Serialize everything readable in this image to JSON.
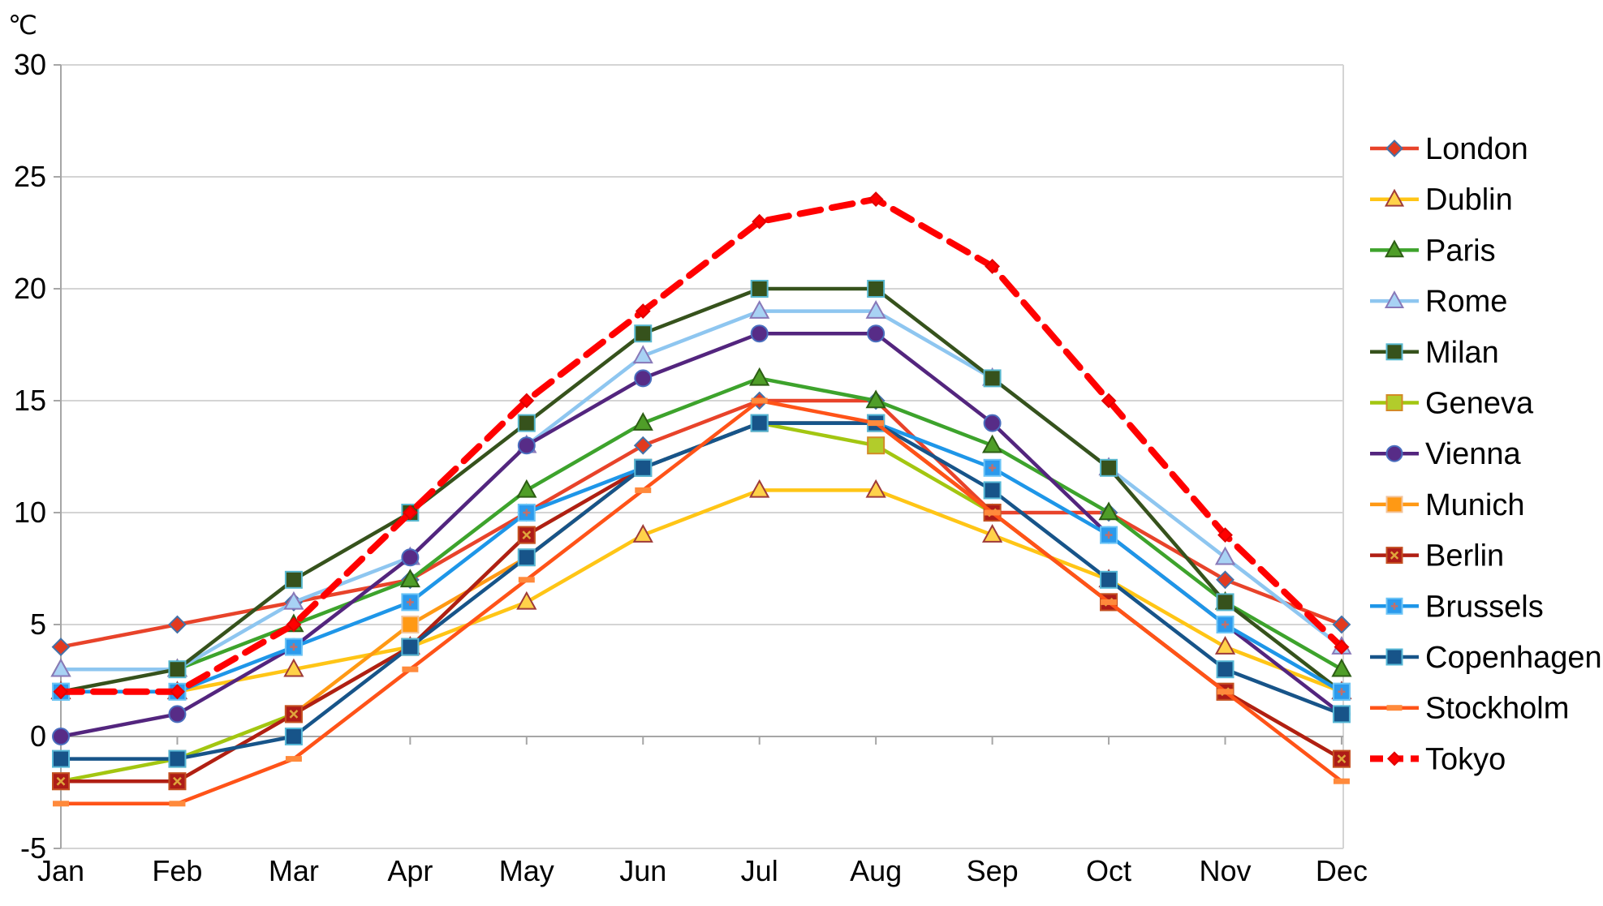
{
  "chart_data": {
    "type": "line",
    "title": "",
    "ylabel": "℃",
    "xlabel": "",
    "grid": "horizontal",
    "legend_position": "right",
    "ylim": [
      -5,
      30
    ],
    "y_ticks": [
      30,
      25,
      20,
      15,
      10,
      5,
      0,
      -5
    ],
    "categories": [
      "Jan",
      "Feb",
      "Mar",
      "Apr",
      "May",
      "Jun",
      "Jul",
      "Aug",
      "Sep",
      "Oct",
      "Nov",
      "Dec"
    ],
    "series": [
      {
        "name": "London",
        "color": "#E8432A",
        "marker": "diamond",
        "marker_fill": "#E23A1F",
        "marker_border": "#4472A8",
        "values": [
          4,
          5,
          6,
          7,
          10,
          13,
          15,
          15,
          10,
          10,
          7,
          5
        ]
      },
      {
        "name": "Dublin",
        "color": "#FFC516",
        "marker": "triangle",
        "marker_fill": "#FFD24A",
        "marker_border": "#9E3A38",
        "values": [
          2,
          2,
          3,
          4,
          6,
          9,
          11,
          11,
          9,
          7,
          4,
          2
        ]
      },
      {
        "name": "Paris",
        "color": "#3DA32C",
        "marker": "triangle",
        "marker_fill": "#4F9E28",
        "marker_border": "#2C5D14",
        "values": [
          3,
          3,
          5,
          7,
          11,
          14,
          16,
          15,
          13,
          10,
          6,
          3
        ]
      },
      {
        "name": "Rome",
        "color": "#8EC6F0",
        "marker": "triangle",
        "marker_fill": "#A8D2F4",
        "marker_border": "#8878B8",
        "values": [
          3,
          3,
          6,
          8,
          13,
          17,
          19,
          19,
          16,
          12,
          8,
          4
        ]
      },
      {
        "name": "Milan",
        "color": "#36521C",
        "marker": "square",
        "marker_fill": "#36521C",
        "marker_border": "#57B7CE",
        "values": [
          2,
          3,
          7,
          10,
          14,
          18,
          20,
          20,
          16,
          12,
          6,
          2
        ]
      },
      {
        "name": "Geneva",
        "color": "#A3C611",
        "marker": "square",
        "marker_fill": "#B2CC2B",
        "marker_border": "#D38A26",
        "values": [
          -2,
          -1,
          1,
          4,
          9,
          12,
          14,
          13,
          10,
          6,
          2,
          -1
        ]
      },
      {
        "name": "Vienna",
        "color": "#53257E",
        "marker": "circle",
        "marker_fill": "#572C87",
        "marker_border": "#4A6FBF",
        "values": [
          0,
          1,
          4,
          8,
          13,
          16,
          18,
          18,
          14,
          9,
          5,
          1
        ]
      },
      {
        "name": "Munich",
        "color": "#FF9914",
        "marker": "square",
        "marker_fill": "#FF9914",
        "marker_border": "#F2C49B",
        "values": [
          -2,
          -2,
          1,
          5,
          8,
          12,
          14,
          14,
          10,
          6,
          2,
          -1
        ]
      },
      {
        "name": "Berlin",
        "color": "#B01F14",
        "marker": "square-x",
        "marker_fill": "#AE1C17",
        "marker_border": "#C34F22",
        "marker_accent": "#DFA53C",
        "values": [
          -2,
          -2,
          1,
          4,
          9,
          12,
          14,
          14,
          10,
          6,
          2,
          -1
        ]
      },
      {
        "name": "Brussels",
        "color": "#1E96E8",
        "marker": "square-plus",
        "marker_fill": "#2C9AEC",
        "marker_border": "#6CC4F6",
        "marker_accent": "#C0706D",
        "values": [
          2,
          2,
          4,
          6,
          10,
          12,
          14,
          14,
          12,
          9,
          5,
          2
        ]
      },
      {
        "name": "Copenhagen",
        "color": "#175489",
        "marker": "square",
        "marker_fill": "#175489",
        "marker_border": "#56B7D6",
        "values": [
          -1,
          -1,
          0,
          4,
          8,
          12,
          14,
          14,
          11,
          7,
          3,
          1
        ]
      },
      {
        "name": "Stockholm",
        "color": "#FF5318",
        "marker": "dash",
        "marker_fill": "#FF8A3C",
        "marker_border": "#FF8A3C",
        "values": [
          -3,
          -3,
          -1,
          3,
          7,
          11,
          15,
          14,
          10,
          6,
          2,
          -2
        ]
      },
      {
        "name": "Tokyo",
        "color": "#FF0000",
        "marker": "diamond",
        "marker_fill": "#FF0000",
        "marker_border": "#E00000",
        "dash": "26,14",
        "line_width": 8,
        "marker_size": 8,
        "values": [
          2,
          2,
          5,
          10,
          15,
          19,
          23,
          24,
          21,
          15,
          9,
          4
        ]
      }
    ],
    "colors": {
      "gridline": "#D4D4D4",
      "axis": "#A6A6A6",
      "tick_label": "#000000",
      "legend_text": "#000000",
      "background": "#FFFFFF"
    }
  }
}
